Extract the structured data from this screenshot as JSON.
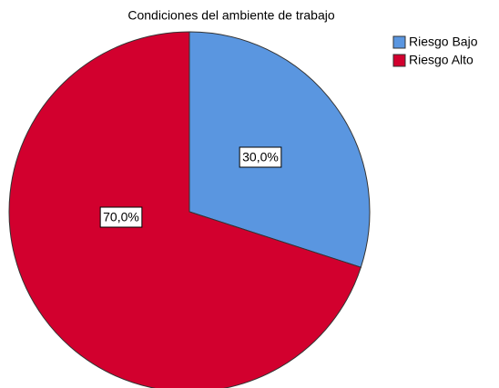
{
  "chart_data": {
    "type": "pie",
    "title": "Condiciones del ambiente de trabajo",
    "categories": [
      "Riesgo Bajo",
      "Riesgo Alto"
    ],
    "values": [
      30,
      70
    ],
    "value_labels": [
      "30,0%",
      "70,0%"
    ],
    "colors": [
      "#5a96e0",
      "#d2002e"
    ],
    "legend": "top-right"
  }
}
